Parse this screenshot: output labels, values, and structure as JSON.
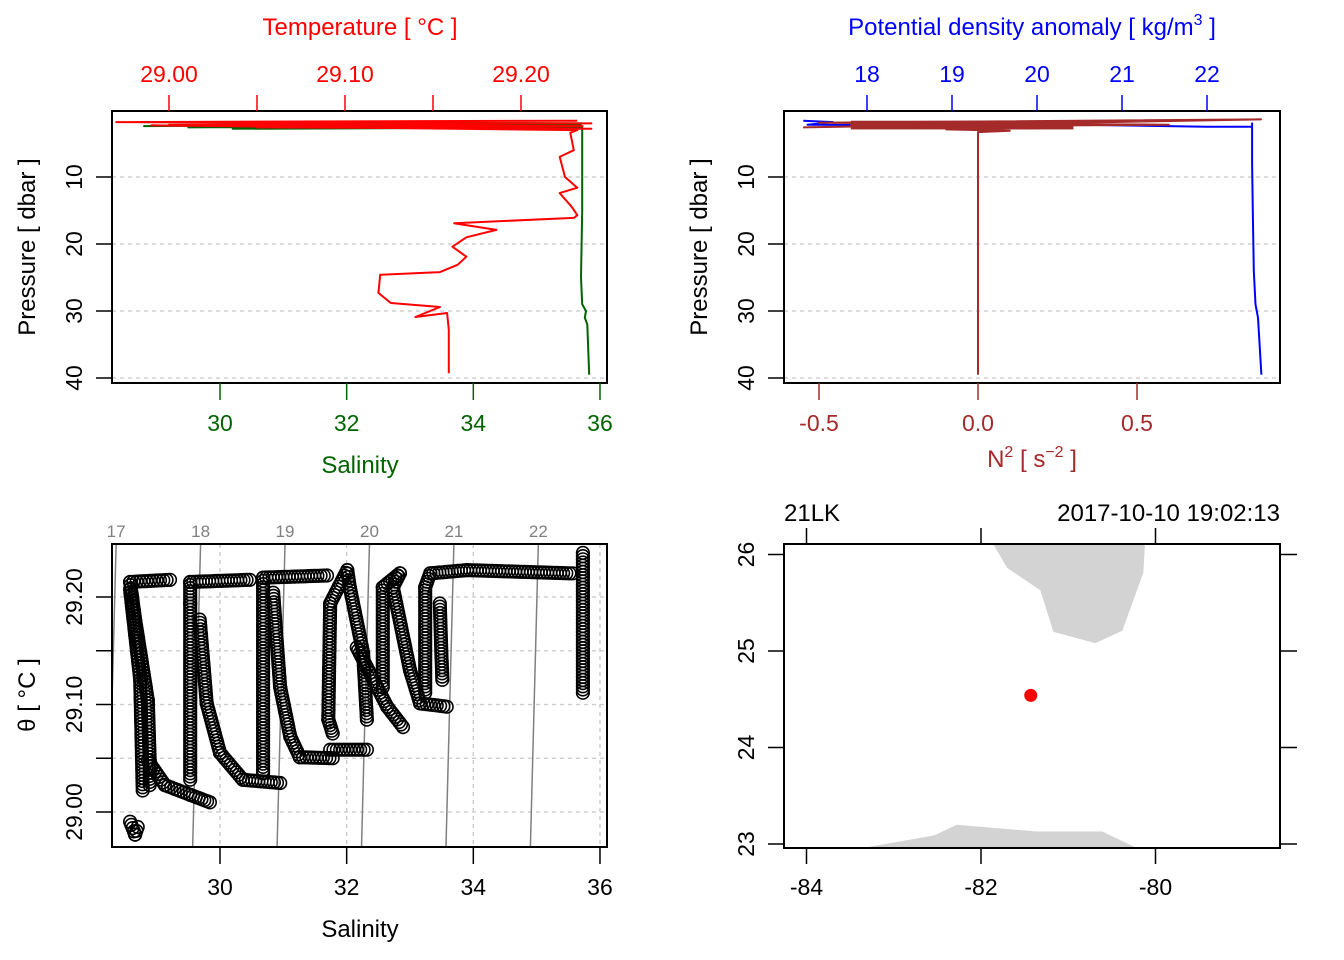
{
  "colors": {
    "temperature": "#ff0000",
    "salinity": "#006400",
    "density": "#0000ff",
    "n2": "#a52a2a",
    "land": "#d3d3d3",
    "isopycnal": "#808080",
    "station": "#ff0000",
    "grid": "#c8c8c8"
  },
  "chart_data": [
    {
      "type": "line",
      "panel": "temperature-salinity-profile",
      "top_axis_label": "Temperature [ °C ]",
      "top_ticks": [
        "29.00",
        "29.10",
        "29.20"
      ],
      "top_minor_ticks": [
        29.0,
        29.05,
        29.1,
        29.15,
        29.2
      ],
      "bottom_axis_label": "Salinity",
      "bottom_ticks": [
        "30",
        "32",
        "34",
        "36"
      ],
      "ylabel": "Pressure [ dbar ]",
      "yticks": [
        "10",
        "20",
        "30",
        "40"
      ],
      "ylim": [
        0,
        40.5
      ],
      "y_reversed": true,
      "grid": true,
      "series": [
        {
          "variable": "temperature",
          "points": [
            [
              29.232,
              1.6
            ],
            [
              28.97,
              1.8
            ],
            [
              29.24,
              2.0
            ],
            [
              29.0,
              2.2
            ],
            [
              29.235,
              2.4
            ],
            [
              29.05,
              2.6
            ],
            [
              29.24,
              2.8
            ],
            [
              28.99,
              2.3
            ],
            [
              29.232,
              3.0
            ],
            [
              29.228,
              3.4
            ],
            [
              29.23,
              6.0
            ],
            [
              29.222,
              7.0
            ],
            [
              29.225,
              10.0
            ],
            [
              29.232,
              11.6
            ],
            [
              29.222,
              12.4
            ],
            [
              29.229,
              14.5
            ],
            [
              29.232,
              15.7
            ],
            [
              29.23,
              16.1
            ],
            [
              29.162,
              16.9
            ],
            [
              29.186,
              17.9
            ],
            [
              29.169,
              19.0
            ],
            [
              29.161,
              20.4
            ],
            [
              29.169,
              21.9
            ],
            [
              29.164,
              23.1
            ],
            [
              29.154,
              24.2
            ],
            [
              29.12,
              24.6
            ],
            [
              29.119,
              27.3
            ],
            [
              29.126,
              28.8
            ],
            [
              29.154,
              29.4
            ],
            [
              29.14,
              30.9
            ],
            [
              29.158,
              30.3
            ],
            [
              29.159,
              32.8
            ],
            [
              29.159,
              39.3
            ]
          ]
        },
        {
          "variable": "salinity",
          "points": [
            [
              28.75,
              1.8
            ],
            [
              35.7,
              2.0
            ],
            [
              28.8,
              2.4
            ],
            [
              34.0,
              2.1
            ],
            [
              29.5,
              2.6
            ],
            [
              35.7,
              2.3
            ],
            [
              30.2,
              2.8
            ],
            [
              35.72,
              2.6
            ],
            [
              35.72,
              3.0
            ],
            [
              35.72,
              15
            ],
            [
              35.7,
              25
            ],
            [
              35.72,
              29
            ],
            [
              35.78,
              30
            ],
            [
              35.76,
              31
            ],
            [
              35.8,
              32
            ],
            [
              35.83,
              39.5
            ]
          ]
        }
      ]
    },
    {
      "type": "line",
      "panel": "density-n2-profile",
      "top_axis_label": "Potential density anomaly [ kg/m",
      "top_axis_label_sup": "3",
      "top_axis_label_end": " ]",
      "top_ticks": [
        "18",
        "19",
        "20",
        "21",
        "22"
      ],
      "bottom_axis_label": "N",
      "bottom_axis_label_sup": "2",
      "bottom_axis_label_mid": " [ s",
      "bottom_axis_label_sup2": "−2",
      "bottom_axis_label_end": " ]",
      "bottom_ticks": [
        "-0.5",
        "0.0",
        "0.5"
      ],
      "ylabel": "Pressure [ dbar ]",
      "yticks": [
        "10",
        "20",
        "30",
        "40"
      ],
      "ylim": [
        0,
        40.5
      ],
      "y_reversed": true,
      "grid": true,
      "series": [
        {
          "variable": "sigma_theta",
          "points": [
            [
              17.25,
              1.6
            ],
            [
              17.6,
              1.8
            ],
            [
              17.3,
              2.2
            ],
            [
              19.0,
              2.3
            ],
            [
              20.5,
              2.2
            ],
            [
              22.0,
              2.5
            ],
            [
              22.53,
              2.5
            ],
            [
              22.53,
              2.0
            ],
            [
              22.53,
              8
            ],
            [
              22.54,
              16
            ],
            [
              22.55,
              24
            ],
            [
              22.57,
              29
            ],
            [
              22.6,
              31
            ],
            [
              22.61,
              33
            ],
            [
              22.64,
              39.5
            ]
          ]
        },
        {
          "variable": "N2",
          "points": [
            [
              -0.55,
              2.6
            ],
            [
              0.89,
              1.4
            ],
            [
              -0.5,
              1.9
            ],
            [
              0.6,
              2.2
            ],
            [
              -0.35,
              2.5
            ],
            [
              0.3,
              2.0
            ],
            [
              -0.4,
              2.3
            ],
            [
              0.2,
              2.7
            ],
            [
              -0.1,
              2.9
            ],
            [
              0.1,
              3.1
            ],
            [
              0.0,
              3.3
            ],
            [
              0.0,
              39.5
            ]
          ]
        }
      ]
    },
    {
      "type": "scatter",
      "panel": "ts-diagram",
      "xlabel": "Salinity",
      "xticks": [
        "30",
        "32",
        "34",
        "36"
      ],
      "ylabel": "θ [ °C ]",
      "yticks": [
        "29.00",
        "29.10",
        "29.20"
      ],
      "grid": true,
      "isopycnals": [
        "17",
        "18",
        "19",
        "20",
        "21",
        "22"
      ],
      "point_traces": [
        [
          [
            29.21,
            29.216
          ],
          [
            28.58,
            29.214
          ],
          [
            28.66,
            29.179
          ],
          [
            28.86,
            29.104
          ],
          [
            28.89,
            29.048
          ],
          [
            28.89,
            29.025
          ]
        ],
        [
          [
            28.58,
            29.207
          ],
          [
            28.74,
            29.123
          ],
          [
            28.78,
            29.02
          ]
        ],
        [
          [
            28.86,
            29.048
          ],
          [
            29.13,
            29.025
          ],
          [
            29.53,
            29.016
          ],
          [
            29.84,
            29.009
          ]
        ],
        [
          [
            28.58,
            28.991
          ],
          [
            28.66,
            28.979
          ],
          [
            28.7,
            28.986
          ]
        ],
        [
          [
            30.47,
            29.216
          ],
          [
            29.53,
            29.214
          ],
          [
            29.53,
            29.194
          ],
          [
            29.53,
            29.03
          ]
        ],
        [
          [
            29.68,
            29.179
          ],
          [
            29.79,
            29.101
          ],
          [
            30.0,
            29.055
          ],
          [
            30.36,
            29.03
          ],
          [
            30.95,
            29.027
          ]
        ],
        [
          [
            31.69,
            29.22
          ],
          [
            30.68,
            29.218
          ],
          [
            30.68,
            29.209
          ],
          [
            30.68,
            29.036
          ]
        ],
        [
          [
            30.84,
            29.204
          ],
          [
            30.95,
            29.116
          ],
          [
            31.11,
            29.07
          ],
          [
            31.26,
            29.051
          ],
          [
            31.78,
            29.05
          ]
        ],
        [
          [
            31.74,
            29.058
          ],
          [
            32.32,
            29.058
          ]
        ],
        [
          [
            31.74,
            29.194
          ],
          [
            32.01,
            29.225
          ],
          [
            32.05,
            29.209
          ],
          [
            32.26,
            29.148
          ],
          [
            32.32,
            29.086
          ]
        ],
        [
          [
            31.74,
            29.194
          ],
          [
            31.71,
            29.086
          ],
          [
            31.78,
            29.073
          ]
        ],
        [
          [
            32.16,
            29.153
          ],
          [
            32.64,
            29.098
          ],
          [
            32.89,
            29.079
          ]
        ],
        [
          [
            32.57,
            29.209
          ],
          [
            32.84,
            29.222
          ],
          [
            32.73,
            29.209
          ],
          [
            33.0,
            29.132
          ],
          [
            33.16,
            29.101
          ],
          [
            33.58,
            29.098
          ]
        ],
        [
          [
            32.57,
            29.209
          ],
          [
            32.57,
            29.116
          ]
        ],
        [
          [
            33.24,
            29.209
          ],
          [
            33.32,
            29.222
          ],
          [
            33.9,
            29.225
          ],
          [
            35.57,
            29.222
          ]
        ],
        [
          [
            33.24,
            29.209
          ],
          [
            33.24,
            29.111
          ]
        ],
        [
          [
            33.47,
            29.194
          ],
          [
            33.51,
            29.123
          ]
        ],
        [
          [
            35.73,
            29.241
          ],
          [
            35.73,
            29.111
          ]
        ]
      ]
    },
    {
      "type": "map",
      "panel": "station-map",
      "station_label": "21LK",
      "datetime": "2017-10-10 19:02:13",
      "xticks": [
        "-84",
        "-82",
        "-80"
      ],
      "yticks": [
        "23",
        "24",
        "25",
        "26"
      ],
      "station": {
        "lon": -81.43,
        "lat": 24.54
      },
      "land": [
        [
          [
            -81.86,
            26.11
          ],
          [
            -81.7,
            25.86
          ],
          [
            -81.32,
            25.63
          ],
          [
            -81.17,
            25.2
          ],
          [
            -80.69,
            25.08
          ],
          [
            -80.38,
            25.21
          ],
          [
            -80.14,
            25.81
          ],
          [
            -80.12,
            26.11
          ]
        ],
        [
          [
            -83.35,
            22.96
          ],
          [
            -82.53,
            23.09
          ],
          [
            -82.28,
            23.2
          ],
          [
            -81.36,
            23.13
          ],
          [
            -80.61,
            23.13
          ],
          [
            -80.22,
            22.96
          ]
        ]
      ]
    }
  ]
}
